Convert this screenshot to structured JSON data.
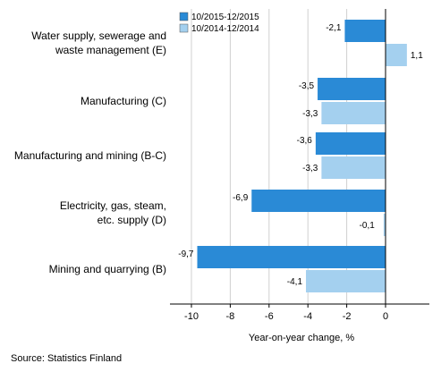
{
  "chart_data": {
    "type": "bar",
    "orientation": "horizontal",
    "categories": [
      [
        "Water supply, sewerage and",
        "waste management (E)"
      ],
      [
        "Manufacturing (C)"
      ],
      [
        "Manufacturing and mining (B-C)"
      ],
      [
        "Electricity, gas, steam,",
        "etc. supply (D)"
      ],
      [
        "Mining and quarrying (B)"
      ]
    ],
    "series": [
      {
        "name": "10/2015-12/2015",
        "color": "#2a8ad6",
        "values": [
          -2.1,
          -3.5,
          -3.6,
          -6.9,
          -9.7
        ],
        "labels": [
          "-2,1",
          "-3,5",
          "-3,6",
          "-6,9",
          "-9,7"
        ]
      },
      {
        "name": "10/2014-12/2014",
        "color": "#a4d0ef",
        "values": [
          1.1,
          -3.3,
          -3.3,
          -0.1,
          -4.1
        ],
        "labels": [
          "1,1",
          "-3,3",
          "-3,3",
          "-0,1",
          "-4,1"
        ]
      }
    ],
    "xlim": [
      -11,
      2
    ],
    "xticks": [
      -10,
      -8,
      -6,
      -4,
      -2,
      0
    ],
    "xtick_labels": [
      "-10",
      "-8",
      "-6",
      "-4",
      "-2",
      "0"
    ],
    "xlabel": "Year-on-year change, %",
    "grid": true,
    "legend_position": "top-left"
  },
  "source": "Source: Statistics Finland"
}
